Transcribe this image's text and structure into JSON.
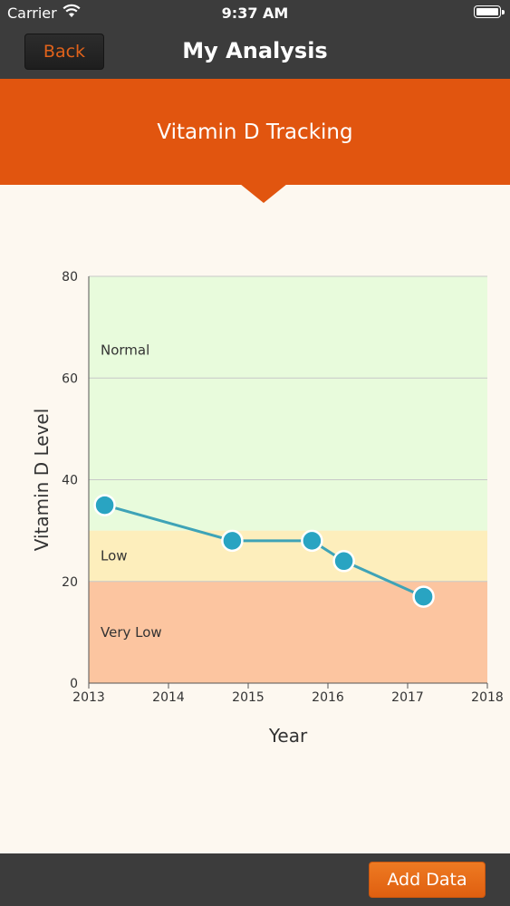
{
  "status_bar": {
    "carrier": "Carrier",
    "time": "9:37 AM"
  },
  "nav": {
    "back_label": "Back",
    "title": "My Analysis"
  },
  "banner": {
    "title": "Vitamin D Tracking"
  },
  "colors": {
    "accent": "#e1550f",
    "bar_bg": "#3c3c3c",
    "line": "#3ea3b7",
    "point": "#29a4c2",
    "zone_normal": "#e8fbdc",
    "zone_low": "#fdeebc",
    "zone_very_low": "#fcc5a0"
  },
  "chart_data": {
    "type": "line",
    "title": "",
    "xlabel": "Year",
    "ylabel": "Vitamin D Level",
    "xlim": [
      2013,
      2018
    ],
    "ylim": [
      0,
      80
    ],
    "x_ticks": [
      "2013",
      "2014",
      "2015",
      "2016",
      "2017",
      "2018"
    ],
    "y_ticks": [
      "0",
      "20",
      "40",
      "60",
      "80"
    ],
    "grid": true,
    "bands": [
      {
        "label": "Very Low",
        "from": 0,
        "to": 20
      },
      {
        "label": "Low",
        "from": 20,
        "to": 30
      },
      {
        "label": "Normal",
        "from": 30,
        "to": 80
      }
    ],
    "series": [
      {
        "x": [
          2013.2,
          2014.8,
          2015.8,
          2016.2,
          2017.2
        ],
        "y": [
          35,
          28,
          28,
          24,
          17
        ]
      }
    ]
  },
  "footer": {
    "add_label": "Add Data"
  }
}
